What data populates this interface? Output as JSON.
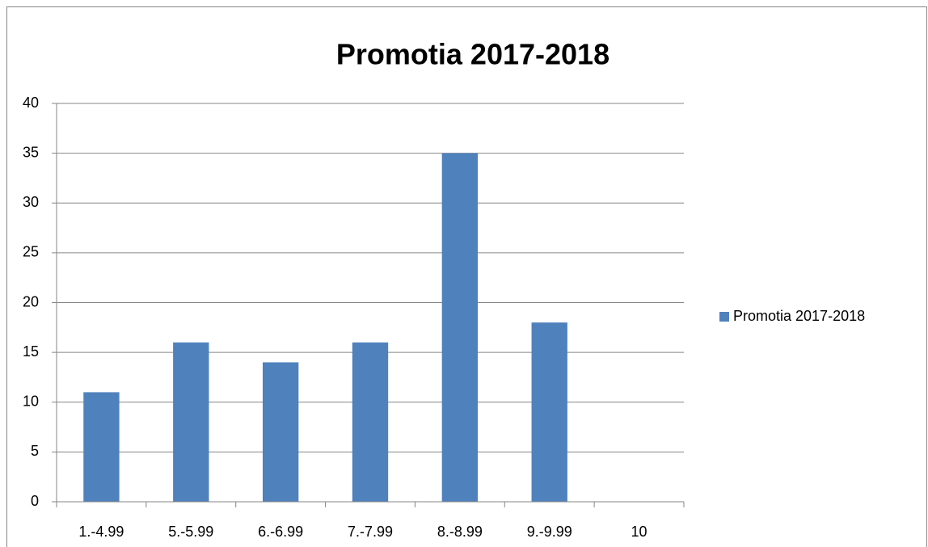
{
  "chart_data": {
    "type": "bar",
    "title": "Promotia 2017-2018",
    "categories": [
      "1.-4.99",
      "5.-5.99",
      "6.-6.99",
      "7.-7.99",
      "8.-8.99",
      "9.-9.99",
      "10"
    ],
    "series": [
      {
        "name": "Promotia 2017-2018",
        "color": "#4f81bd",
        "values": [
          11,
          16,
          14,
          16,
          35,
          18,
          0
        ]
      }
    ],
    "ylim": [
      0,
      40
    ],
    "yticks": [
      0,
      5,
      10,
      15,
      20,
      25,
      30,
      35,
      40
    ],
    "grid": true,
    "legend": "right"
  }
}
